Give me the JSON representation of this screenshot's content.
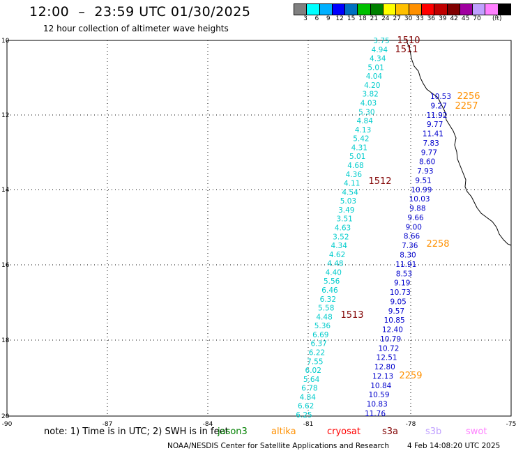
{
  "header": {
    "title": "12:00  –  23:59 UTC 01/30/2025",
    "subtitle": "12 hour collection of altimeter wave heights"
  },
  "legend": {
    "colors": [
      "#808080",
      "#00ffff",
      "#00b0ff",
      "#0000ff",
      "#0070c0",
      "#00c000",
      "#008000",
      "#ffff00",
      "#ffc000",
      "#ff9000",
      "#ff0000",
      "#c00000",
      "#800000",
      "#a000a0",
      "#c0a0ff",
      "#ff80ff",
      "#000000"
    ],
    "labels": [
      "3",
      "6",
      "9",
      "12",
      "15",
      "18",
      "21",
      "24",
      "27",
      "30",
      "33",
      "36",
      "39",
      "42",
      "45",
      "70"
    ],
    "unit": "(ft)"
  },
  "axes": {
    "lat_labels": [
      "10",
      "12",
      "14",
      "16",
      "18",
      "20"
    ],
    "lon_labels": [
      "-90",
      "-87",
      "-84",
      "-81",
      "-78",
      "-75"
    ]
  },
  "tracks": [
    {
      "color": "#00cccc",
      "values": [
        "3.75",
        "4.94",
        "4.34",
        "5.01",
        "4.04",
        "4.20",
        "3.82",
        "4.03",
        "5.30",
        "4.84",
        "4.13",
        "5.42",
        "4.31",
        "5.01",
        "4.68",
        "4.36",
        "4.11",
        "4.54",
        "5.03",
        "3.49",
        "3.51",
        "4.63",
        "3.52",
        "4.34",
        "4.62",
        "4.48",
        "4.40",
        "5.56",
        "6.46",
        "6.32",
        "5.58",
        "4.48",
        "5.36",
        "6.69",
        "6.37",
        "6.22",
        "7.55",
        "6.02",
        "5.64",
        "6.78",
        "4.84",
        "6.62",
        "6.25"
      ]
    },
    {
      "color": "#0000cc",
      "values": [
        "10.53",
        "9.27",
        "11.92",
        "9.77",
        "11.41",
        "7.83",
        "9.77",
        "8.60",
        "7.93",
        "9.51",
        "10.99",
        "10.03",
        "9.88",
        "9.66",
        "9.00",
        "8.66",
        "7.36",
        "8.30",
        "11.91",
        "8.53",
        "9.19",
        "10.73",
        "9.05",
        "9.57",
        "10.85",
        "12.40",
        "10.79",
        "10.72",
        "12.51",
        "12.80",
        "12.13",
        "10.84",
        "10.59",
        "10.83",
        "11.76"
      ]
    }
  ],
  "time_labels": [
    {
      "text": "1510",
      "color": "#800000"
    },
    {
      "text": "1511",
      "color": "#800000"
    },
    {
      "text": "1512",
      "color": "#800000"
    },
    {
      "text": "1513",
      "color": "#800000"
    },
    {
      "text": "2256",
      "color": "#ff9000"
    },
    {
      "text": "2257",
      "color": "#ff9000"
    },
    {
      "text": "2258",
      "color": "#ff9000"
    },
    {
      "text": "2259",
      "color": "#ff9000"
    }
  ],
  "footer": {
    "note": "note:  1) Time is in UTC;  2) SWH is in feet",
    "satellites": [
      {
        "name": "jason3",
        "color": "#008000"
      },
      {
        "name": "altika",
        "color": "#ff9000"
      },
      {
        "name": "cryosat",
        "color": "#ff0000"
      },
      {
        "name": "s3a",
        "color": "#800000"
      },
      {
        "name": "s3b",
        "color": "#c0a0ff"
      },
      {
        "name": "swot",
        "color": "#ff80ff"
      }
    ],
    "credit": "NOAA/NESDIS Center for Satellite Applications and Research",
    "timestamp": "4 Feb 14:08:20 UTC 2025"
  }
}
